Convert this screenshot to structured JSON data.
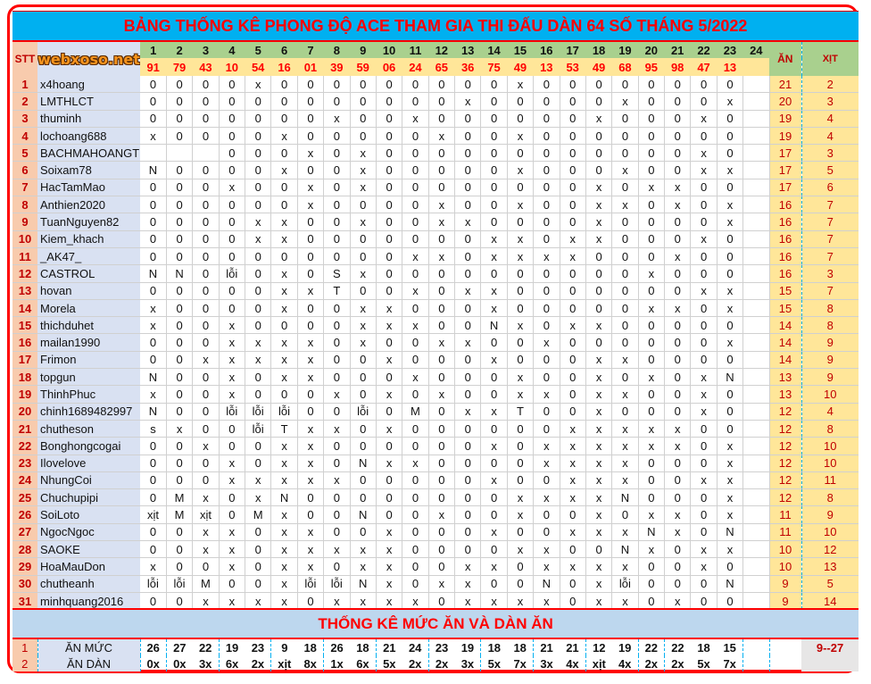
{
  "title": "BẢNG THỐNG KÊ PHONG ĐỘ ACE THAM GIA THI ĐẤU DÀN 64 SỐ THÁNG 5/2022",
  "watermark": "webxoso.net",
  "headers": {
    "stt": "STT",
    "name": "",
    "an": "ĂN",
    "xit": "XỊT"
  },
  "days": [
    "1",
    "2",
    "3",
    "4",
    "5",
    "6",
    "7",
    "8",
    "9",
    "10",
    "11",
    "12",
    "13",
    "14",
    "15",
    "16",
    "17",
    "18",
    "19",
    "20",
    "21",
    "22",
    "23",
    "24"
  ],
  "results": [
    "91",
    "79",
    "43",
    "10",
    "54",
    "16",
    "01",
    "39",
    "59",
    "06",
    "24",
    "65",
    "36",
    "75",
    "49",
    "13",
    "53",
    "49",
    "68",
    "95",
    "98",
    "47",
    "13",
    ""
  ],
  "rows": [
    {
      "stt": "1",
      "name": "x4hoang",
      "cells": [
        "0",
        "0",
        "0",
        "0",
        "x",
        "0",
        "0",
        "0",
        "0",
        "0",
        "0",
        "0",
        "0",
        "0",
        "x",
        "0",
        "0",
        "0",
        "0",
        "0",
        "0",
        "0",
        "0",
        ""
      ],
      "an": "21",
      "xit": "2"
    },
    {
      "stt": "2",
      "name": "LMTHLCT",
      "cells": [
        "0",
        "0",
        "0",
        "0",
        "0",
        "0",
        "0",
        "0",
        "0",
        "0",
        "0",
        "0",
        "x",
        "0",
        "0",
        "0",
        "0",
        "0",
        "x",
        "0",
        "0",
        "0",
        "x",
        ""
      ],
      "an": "20",
      "xit": "3"
    },
    {
      "stt": "3",
      "name": "thuminh",
      "cells": [
        "0",
        "0",
        "0",
        "0",
        "0",
        "0",
        "0",
        "x",
        "0",
        "0",
        "x",
        "0",
        "0",
        "0",
        "0",
        "0",
        "0",
        "x",
        "0",
        "0",
        "0",
        "x",
        "0",
        ""
      ],
      "an": "19",
      "xit": "4"
    },
    {
      "stt": "4",
      "name": "lochoang688",
      "cells": [
        "x",
        "0",
        "0",
        "0",
        "0",
        "x",
        "0",
        "0",
        "0",
        "0",
        "0",
        "x",
        "0",
        "0",
        "x",
        "0",
        "0",
        "0",
        "0",
        "0",
        "0",
        "0",
        "0",
        ""
      ],
      "an": "19",
      "xit": "4"
    },
    {
      "stt": "5",
      "name": "BACHMAHOANGTU",
      "cells": [
        "",
        "",
        "",
        "0",
        "0",
        "0",
        "x",
        "0",
        "x",
        "0",
        "0",
        "0",
        "0",
        "0",
        "0",
        "0",
        "0",
        "0",
        "0",
        "0",
        "0",
        "x",
        "0",
        ""
      ],
      "an": "17",
      "xit": "3"
    },
    {
      "stt": "6",
      "name": "Soixam78",
      "cells": [
        "N",
        "0",
        "0",
        "0",
        "0",
        "x",
        "0",
        "0",
        "x",
        "0",
        "0",
        "0",
        "0",
        "0",
        "x",
        "0",
        "0",
        "0",
        "x",
        "0",
        "0",
        "x",
        "x",
        ""
      ],
      "an": "17",
      "xit": "5"
    },
    {
      "stt": "7",
      "name": "HacTamMao",
      "cells": [
        "0",
        "0",
        "0",
        "x",
        "0",
        "0",
        "x",
        "0",
        "x",
        "0",
        "0",
        "0",
        "0",
        "0",
        "0",
        "0",
        "0",
        "x",
        "0",
        "x",
        "x",
        "0",
        "0",
        ""
      ],
      "an": "17",
      "xit": "6"
    },
    {
      "stt": "8",
      "name": "Anthien2020",
      "cells": [
        "0",
        "0",
        "0",
        "0",
        "0",
        "0",
        "x",
        "0",
        "0",
        "0",
        "0",
        "x",
        "0",
        "0",
        "x",
        "0",
        "0",
        "x",
        "x",
        "0",
        "x",
        "0",
        "x",
        ""
      ],
      "an": "16",
      "xit": "7"
    },
    {
      "stt": "9",
      "name": "TuanNguyen82",
      "cells": [
        "0",
        "0",
        "0",
        "0",
        "x",
        "x",
        "0",
        "0",
        "x",
        "0",
        "0",
        "x",
        "x",
        "0",
        "0",
        "0",
        "0",
        "x",
        "0",
        "0",
        "0",
        "0",
        "x",
        ""
      ],
      "an": "16",
      "xit": "7"
    },
    {
      "stt": "10",
      "name": "Kiem_khach",
      "cells": [
        "0",
        "0",
        "0",
        "0",
        "x",
        "x",
        "0",
        "0",
        "0",
        "0",
        "0",
        "0",
        "0",
        "x",
        "x",
        "0",
        "x",
        "x",
        "0",
        "0",
        "0",
        "x",
        "0",
        ""
      ],
      "an": "16",
      "xit": "7"
    },
    {
      "stt": "11",
      "name": "_AK47_",
      "cells": [
        "0",
        "0",
        "0",
        "0",
        "0",
        "0",
        "0",
        "0",
        "0",
        "0",
        "x",
        "x",
        "0",
        "x",
        "x",
        "x",
        "x",
        "0",
        "0",
        "0",
        "x",
        "0",
        "0",
        ""
      ],
      "an": "16",
      "xit": "7"
    },
    {
      "stt": "12",
      "name": "CASTROL",
      "cells": [
        "N",
        "N",
        "0",
        "lỗi",
        "0",
        "x",
        "0",
        "S",
        "x",
        "0",
        "0",
        "0",
        "0",
        "0",
        "0",
        "0",
        "0",
        "0",
        "0",
        "x",
        "0",
        "0",
        "0",
        ""
      ],
      "an": "16",
      "xit": "3"
    },
    {
      "stt": "13",
      "name": "hovan",
      "cells": [
        "0",
        "0",
        "0",
        "0",
        "0",
        "x",
        "x",
        "T",
        "0",
        "0",
        "x",
        "0",
        "x",
        "x",
        "0",
        "0",
        "0",
        "0",
        "0",
        "0",
        "0",
        "x",
        "x",
        ""
      ],
      "an": "15",
      "xit": "7"
    },
    {
      "stt": "14",
      "name": "Morela",
      "cells": [
        "x",
        "0",
        "0",
        "0",
        "0",
        "x",
        "0",
        "0",
        "x",
        "x",
        "0",
        "0",
        "0",
        "x",
        "0",
        "0",
        "0",
        "0",
        "0",
        "x",
        "x",
        "0",
        "x",
        ""
      ],
      "an": "15",
      "xit": "8"
    },
    {
      "stt": "15",
      "name": "thichduhet",
      "cells": [
        "x",
        "0",
        "0",
        "x",
        "0",
        "0",
        "0",
        "0",
        "x",
        "x",
        "x",
        "0",
        "0",
        "N",
        "x",
        "0",
        "x",
        "x",
        "0",
        "0",
        "0",
        "0",
        "0",
        ""
      ],
      "an": "14",
      "xit": "8"
    },
    {
      "stt": "16",
      "name": "mailan1990",
      "cells": [
        "0",
        "0",
        "0",
        "x",
        "x",
        "x",
        "x",
        "0",
        "x",
        "0",
        "0",
        "x",
        "x",
        "0",
        "0",
        "x",
        "0",
        "0",
        "0",
        "0",
        "0",
        "0",
        "x",
        ""
      ],
      "an": "14",
      "xit": "9"
    },
    {
      "stt": "17",
      "name": "Frimon",
      "cells": [
        "0",
        "0",
        "x",
        "x",
        "x",
        "x",
        "x",
        "0",
        "0",
        "x",
        "0",
        "0",
        "0",
        "x",
        "0",
        "0",
        "0",
        "x",
        "x",
        "0",
        "0",
        "0",
        "0",
        ""
      ],
      "an": "14",
      "xit": "9"
    },
    {
      "stt": "18",
      "name": "topgun",
      "cells": [
        "N",
        "0",
        "0",
        "x",
        "0",
        "x",
        "x",
        "0",
        "0",
        "0",
        "x",
        "0",
        "0",
        "0",
        "x",
        "0",
        "0",
        "x",
        "0",
        "x",
        "0",
        "x",
        "N",
        ""
      ],
      "an": "13",
      "xit": "9"
    },
    {
      "stt": "19",
      "name": "ThinhPhuc",
      "cells": [
        "x",
        "0",
        "0",
        "x",
        "0",
        "0",
        "0",
        "x",
        "0",
        "x",
        "0",
        "x",
        "0",
        "0",
        "x",
        "x",
        "0",
        "x",
        "x",
        "0",
        "0",
        "x",
        "0",
        ""
      ],
      "an": "13",
      "xit": "10"
    },
    {
      "stt": "20",
      "name": "chinh1689482997",
      "cells": [
        "N",
        "0",
        "0",
        "lỗi",
        "lỗi",
        "lỗi",
        "0",
        "0",
        "lỗi",
        "0",
        "M",
        "0",
        "x",
        "x",
        "T",
        "0",
        "0",
        "x",
        "0",
        "0",
        "0",
        "x",
        "0",
        ""
      ],
      "an": "12",
      "xit": "4"
    },
    {
      "stt": "21",
      "name": "chutheson",
      "cells": [
        "s",
        "x",
        "0",
        "0",
        "lỗi",
        "T",
        "x",
        "x",
        "0",
        "x",
        "0",
        "0",
        "0",
        "0",
        "0",
        "0",
        "x",
        "x",
        "x",
        "x",
        "x",
        "0",
        "0",
        ""
      ],
      "an": "12",
      "xit": "8"
    },
    {
      "stt": "22",
      "name": "Bonghongcogai",
      "cells": [
        "0",
        "0",
        "x",
        "0",
        "0",
        "x",
        "x",
        "0",
        "0",
        "0",
        "0",
        "0",
        "0",
        "x",
        "0",
        "x",
        "x",
        "x",
        "x",
        "x",
        "x",
        "0",
        "x",
        ""
      ],
      "an": "12",
      "xit": "10"
    },
    {
      "stt": "23",
      "name": "Ilovelove",
      "cells": [
        "0",
        "0",
        "0",
        "x",
        "0",
        "x",
        "x",
        "0",
        "N",
        "x",
        "x",
        "0",
        "0",
        "0",
        "0",
        "x",
        "x",
        "x",
        "x",
        "0",
        "0",
        "0",
        "x",
        ""
      ],
      "an": "12",
      "xit": "10"
    },
    {
      "stt": "24",
      "name": "NhungCoi",
      "cells": [
        "0",
        "0",
        "0",
        "x",
        "x",
        "x",
        "x",
        "x",
        "0",
        "0",
        "0",
        "0",
        "0",
        "x",
        "0",
        "0",
        "x",
        "x",
        "x",
        "0",
        "0",
        "x",
        "x",
        ""
      ],
      "an": "12",
      "xit": "11"
    },
    {
      "stt": "25",
      "name": "Chuchupipi",
      "cells": [
        "0",
        "M",
        "x",
        "0",
        "x",
        "N",
        "0",
        "0",
        "0",
        "0",
        "0",
        "0",
        "0",
        "0",
        "x",
        "x",
        "x",
        "x",
        "N",
        "0",
        "0",
        "0",
        "x",
        ""
      ],
      "an": "12",
      "xit": "8"
    },
    {
      "stt": "26",
      "name": "SoiLoto",
      "cells": [
        "xịt",
        "M",
        "xịt",
        "0",
        "M",
        "x",
        "0",
        "0",
        "N",
        "0",
        "0",
        "x",
        "0",
        "0",
        "x",
        "0",
        "0",
        "x",
        "0",
        "x",
        "x",
        "0",
        "x",
        ""
      ],
      "an": "11",
      "xit": "9"
    },
    {
      "stt": "27",
      "name": "NgocNgoc",
      "cells": [
        "0",
        "0",
        "x",
        "x",
        "0",
        "x",
        "x",
        "0",
        "0",
        "x",
        "0",
        "0",
        "0",
        "x",
        "0",
        "0",
        "x",
        "x",
        "x",
        "N",
        "x",
        "0",
        "N",
        ""
      ],
      "an": "11",
      "xit": "10"
    },
    {
      "stt": "28",
      "name": "SAOKE",
      "cells": [
        "0",
        "0",
        "x",
        "x",
        "0",
        "x",
        "x",
        "x",
        "x",
        "x",
        "0",
        "0",
        "0",
        "0",
        "x",
        "x",
        "0",
        "0",
        "N",
        "x",
        "0",
        "x",
        "x",
        ""
      ],
      "an": "10",
      "xit": "12"
    },
    {
      "stt": "29",
      "name": "HoaMauDon",
      "cells": [
        "x",
        "0",
        "0",
        "x",
        "0",
        "x",
        "x",
        "0",
        "x",
        "x",
        "0",
        "0",
        "x",
        "x",
        "0",
        "x",
        "x",
        "x",
        "x",
        "0",
        "0",
        "x",
        "0",
        ""
      ],
      "an": "10",
      "xit": "13"
    },
    {
      "stt": "30",
      "name": "chutheanh",
      "cells": [
        "lỗi",
        "lỗi",
        "M",
        "0",
        "0",
        "x",
        "lỗi",
        "lỗi",
        "N",
        "x",
        "0",
        "x",
        "x",
        "0",
        "0",
        "N",
        "0",
        "x",
        "lỗi",
        "0",
        "0",
        "0",
        "N",
        ""
      ],
      "an": "9",
      "xit": "5"
    },
    {
      "stt": "31",
      "name": "minhquang2016",
      "cells": [
        "0",
        "0",
        "x",
        "x",
        "x",
        "x",
        "0",
        "x",
        "x",
        "x",
        "x",
        "0",
        "x",
        "x",
        "x",
        "x",
        "0",
        "x",
        "x",
        "0",
        "x",
        "0",
        "0",
        ""
      ],
      "an": "9",
      "xit": "14"
    }
  ],
  "summary": {
    "title": "THỐNG KÊ MỨC ĂN VÀ DÀN ĂN",
    "rows": [
      {
        "stt": "1",
        "label": "ĂN MỨC",
        "values": [
          "26",
          "27",
          "22",
          "19",
          "23",
          "9",
          "18",
          "26",
          "18",
          "21",
          "24",
          "23",
          "19",
          "18",
          "18",
          "21",
          "21",
          "12",
          "19",
          "22",
          "22",
          "18",
          "15",
          ""
        ]
      },
      {
        "stt": "2",
        "label": "ĂN DÀN",
        "values": [
          "0x",
          "0x",
          "3x",
          "6x",
          "2x",
          "xịt",
          "8x",
          "1x",
          "6x",
          "5x",
          "2x",
          "2x",
          "3x",
          "5x",
          "7x",
          "3x",
          "4x",
          "xịt",
          "4x",
          "2x",
          "2x",
          "5x",
          "7x",
          ""
        ]
      }
    ],
    "range": "9--27"
  },
  "colors": {
    "border": "#ff0000",
    "title_bg": "#00b0f0",
    "day_header": "#a9d08e",
    "result_header": "#ffe699",
    "stt_col": "#f8cbad",
    "name_col": "#d9e1f2",
    "summary_title_bg": "#bdd7ee",
    "text_red": "#c00000",
    "watermark": "#f7941d"
  }
}
